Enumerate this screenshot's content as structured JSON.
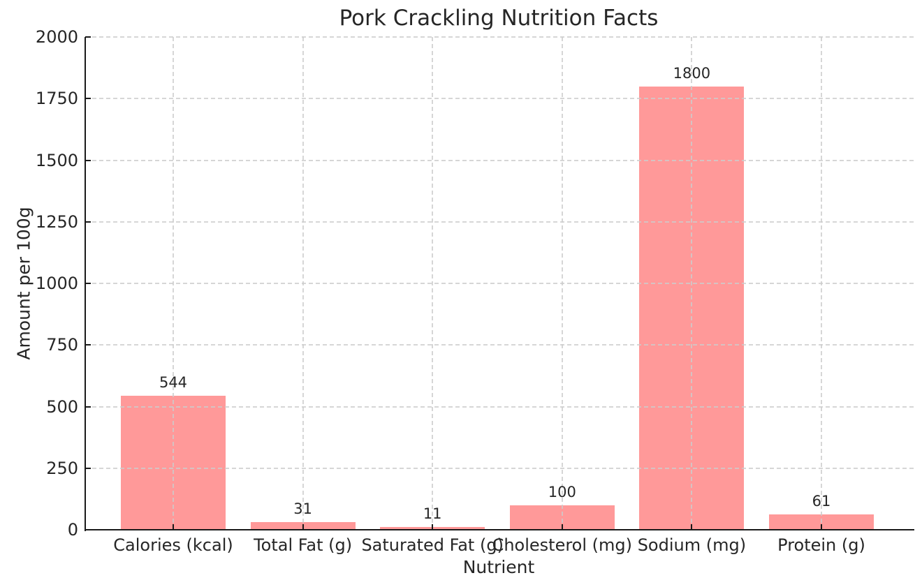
{
  "chart_data": {
    "type": "bar",
    "title": "Pork Crackling Nutrition Facts",
    "xlabel": "Nutrient",
    "ylabel": "Amount per 100g",
    "categories": [
      "Calories (kcal)",
      "Total Fat (g)",
      "Saturated Fat (g)",
      "Cholesterol (mg)",
      "Sodium (mg)",
      "Protein (g)"
    ],
    "values": [
      544,
      31,
      11,
      100,
      1800,
      61
    ],
    "bar_value_labels": [
      "544",
      "31",
      "11",
      "100",
      "1800",
      "61"
    ],
    "ylim": [
      0,
      2000
    ],
    "yticks": [
      0,
      250,
      500,
      750,
      1000,
      1250,
      1500,
      1750,
      2000
    ],
    "grid": "dashed, horizontal and vertical, drawn above bars",
    "legend": "none",
    "colors": {
      "bar_fill": "#ff9999",
      "grid_line": "#cccccc",
      "axis_line": "#1a1a1a",
      "text": "#262626",
      "background": "#ffffff"
    }
  }
}
